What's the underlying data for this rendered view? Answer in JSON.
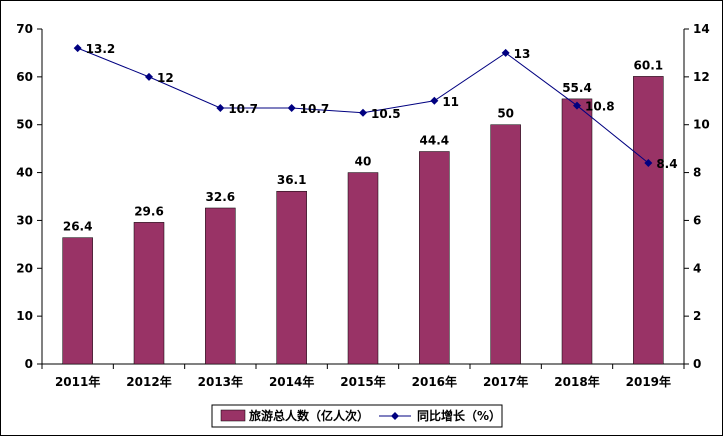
{
  "chart_data": {
    "type": "bar",
    "categories": [
      "2011年",
      "2012年",
      "2013年",
      "2014年",
      "2015年",
      "2016年",
      "2017年",
      "2018年",
      "2019年"
    ],
    "series": [
      {
        "name": "旅游总人数（亿人次）",
        "type": "bar",
        "axis": "left",
        "color": "#993366",
        "values": [
          26.4,
          29.6,
          32.6,
          36.1,
          40,
          44.4,
          50,
          55.4,
          60.1
        ],
        "labels": [
          "26.4",
          "29.6",
          "32.6",
          "36.1",
          "40",
          "44.4",
          "50",
          "55.4",
          "60.1"
        ]
      },
      {
        "name": "同比增长（%）",
        "type": "line",
        "axis": "right",
        "color": "#000080",
        "values": [
          13.2,
          12,
          10.7,
          10.7,
          10.5,
          11,
          13,
          10.8,
          8.4
        ],
        "labels": [
          "13.2",
          "12",
          "10.7",
          "10.7",
          "10.5",
          "11",
          "13",
          "10.8",
          "8.4"
        ]
      }
    ],
    "ylim_left": [
      0,
      70
    ],
    "ylim_right": [
      0,
      14
    ],
    "yticks_left": [
      "0",
      "10",
      "20",
      "30",
      "40",
      "50",
      "60",
      "70"
    ],
    "yticks_right": [
      "0",
      "2",
      "4",
      "6",
      "8",
      "10",
      "12",
      "14"
    ],
    "grid": false,
    "legend_position": "bottom"
  }
}
